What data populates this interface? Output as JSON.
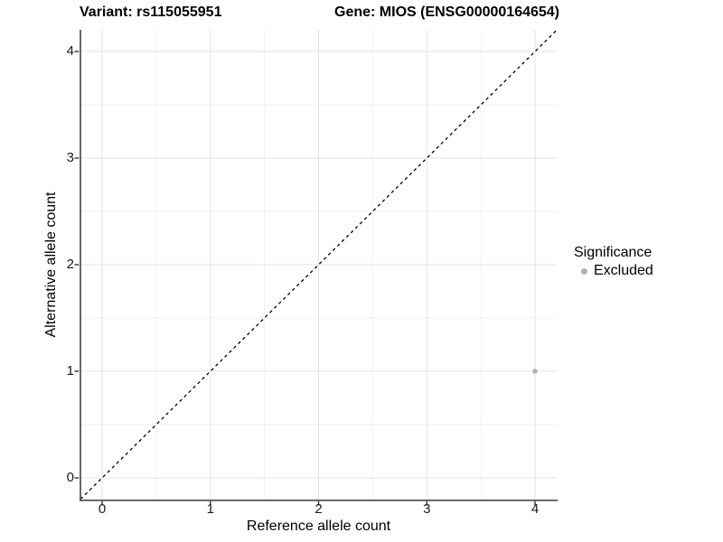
{
  "chart_data": {
    "type": "scatter",
    "titles": [
      "Variant: rs115055951",
      "Gene: MIOS (ENSG00000164654)"
    ],
    "xlabel": "Reference allele count",
    "ylabel": "Alternative allele count",
    "xlim": [
      -0.2,
      4.2
    ],
    "ylim": [
      -0.2,
      4.2
    ],
    "xticks": [
      "0",
      "1",
      "2",
      "3",
      "4"
    ],
    "yticks": [
      "0",
      "1",
      "2",
      "3",
      "4"
    ],
    "grid": "major and minor gridlines, light gray, on white panel",
    "reference_line": {
      "kind": "identity y=x",
      "style": "dashed",
      "color": "#000000"
    },
    "series": [
      {
        "name": "Excluded",
        "color": "#b3b3b3",
        "points": [
          [
            4,
            1
          ]
        ]
      }
    ],
    "legend": {
      "title": "Significance",
      "position": "right",
      "entries": [
        {
          "label": "Excluded",
          "color": "#b3b3b3",
          "marker": "circle"
        }
      ]
    }
  },
  "colors": {
    "background": "#ffffff",
    "point": "#b3b3b3",
    "axis_line": "#575757",
    "tick_mark": "#333333",
    "grid_major": "#e3e3e3",
    "grid_minor": "#f0f0f0",
    "reference_line": "#000000",
    "text": "#000000"
  }
}
